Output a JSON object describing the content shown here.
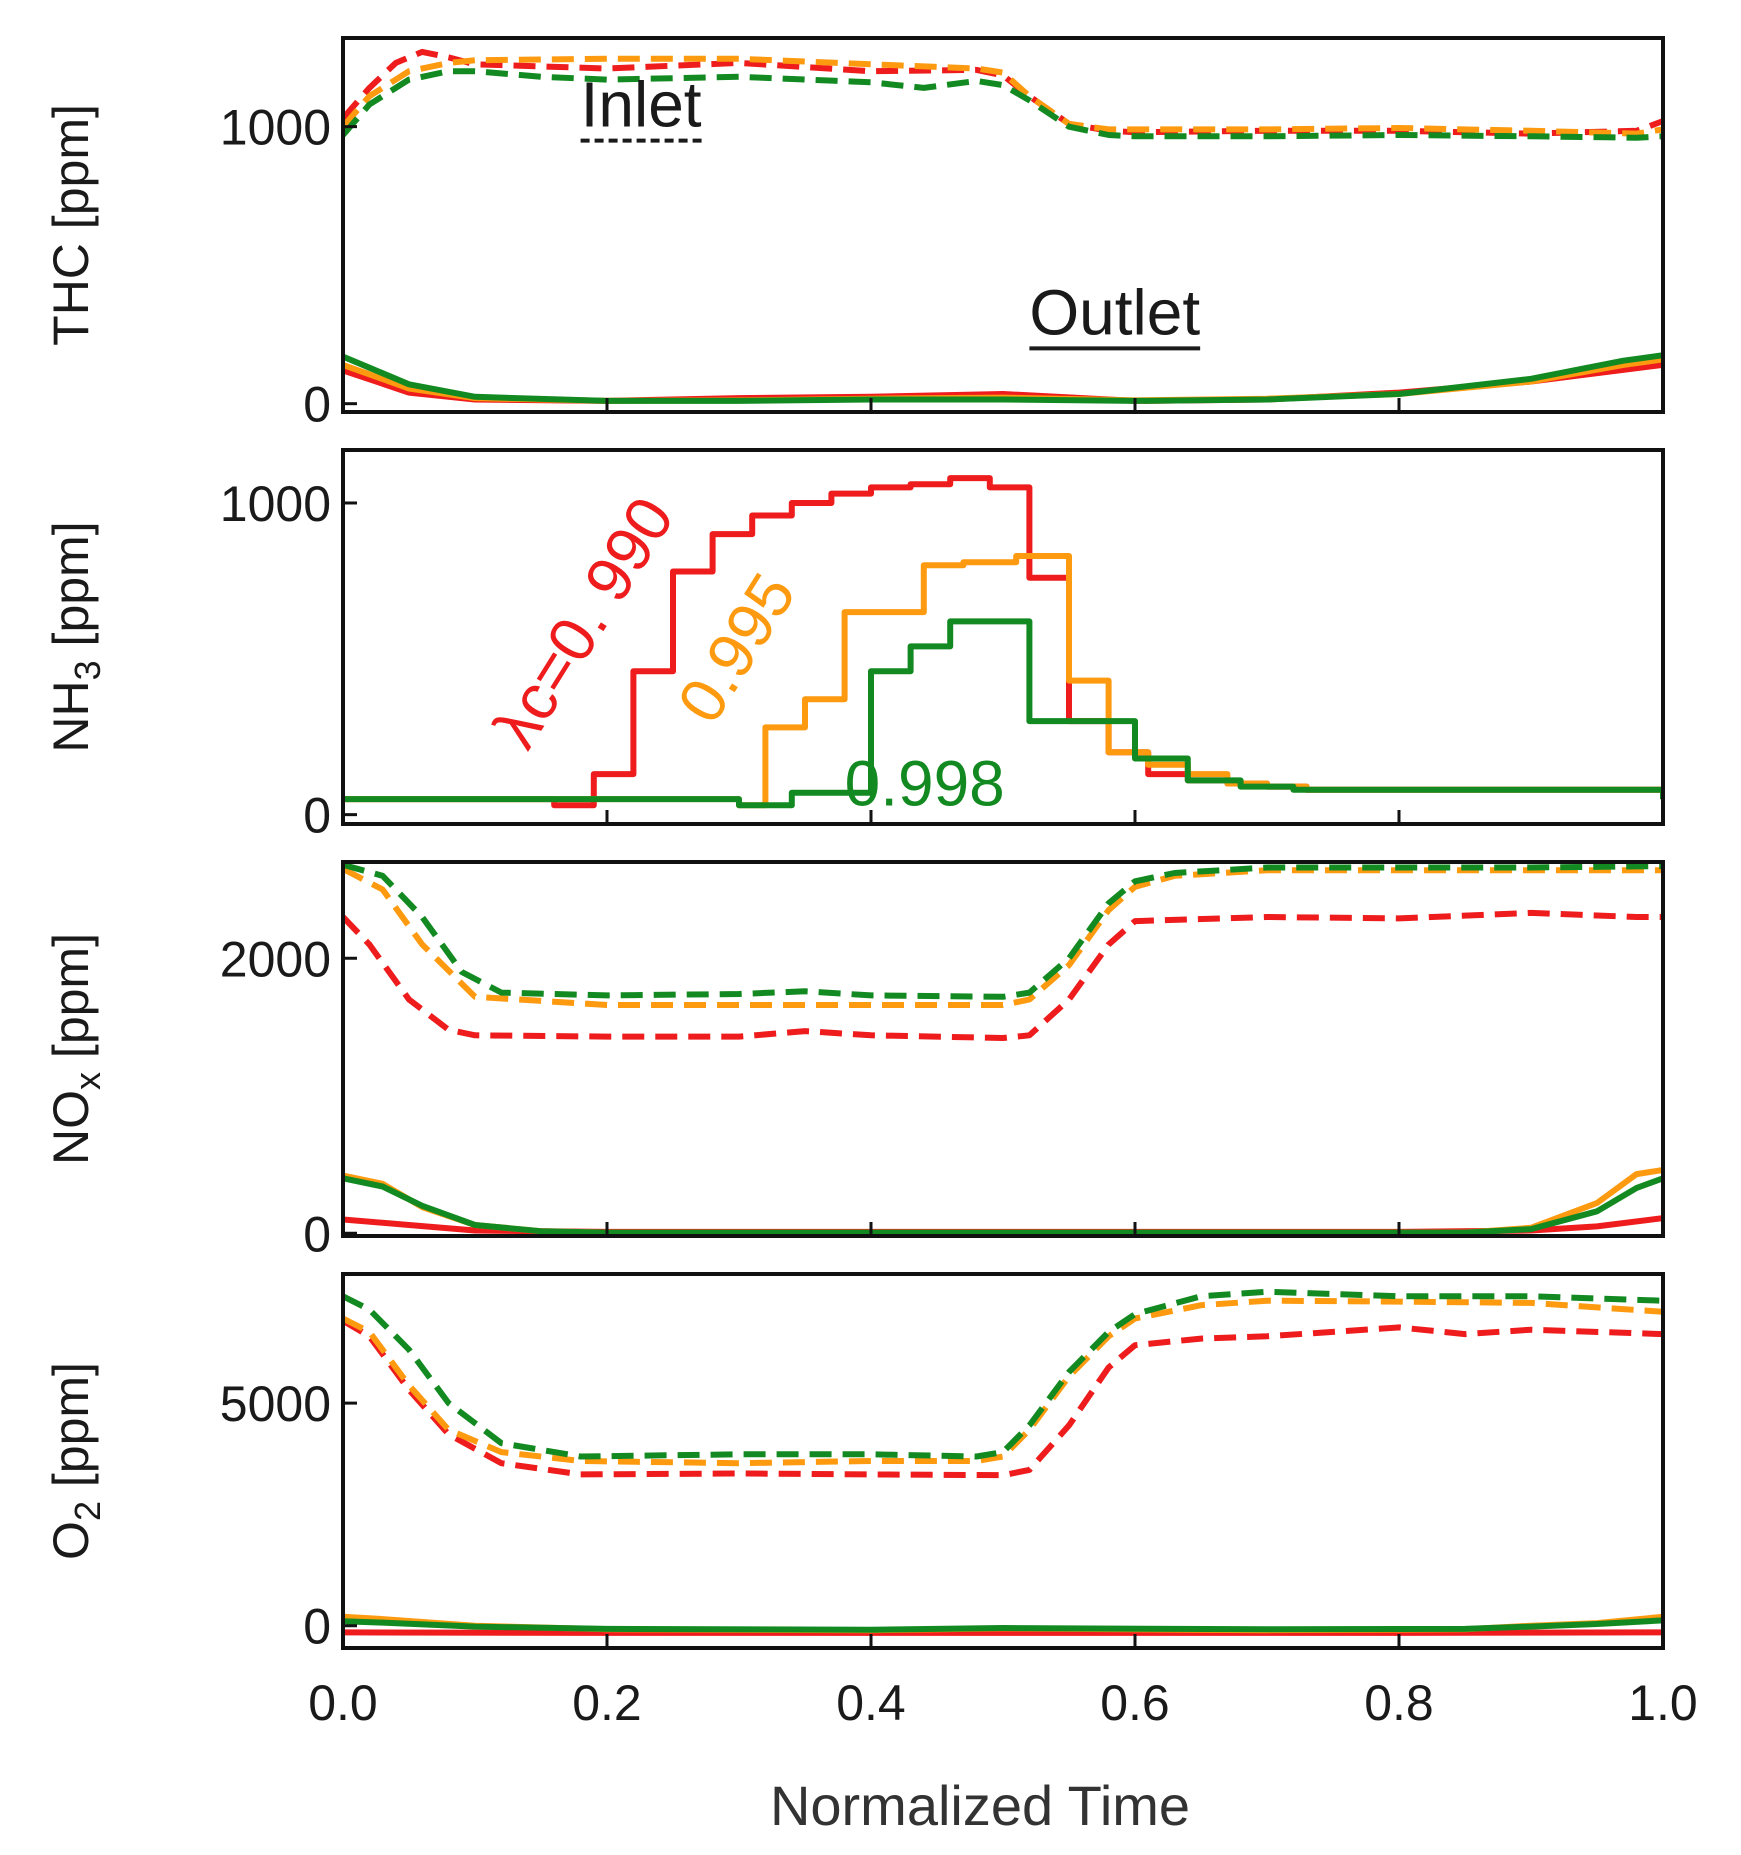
{
  "colors": {
    "red": "#ee1c1c",
    "orange": "#fd9a0f",
    "green": "#138a21",
    "axis": "#111111",
    "text": "#1a1a1a"
  },
  "chart_data": {
    "type": "line",
    "xlabel": "Normalized Time",
    "x_ticks": [
      0.0,
      0.2,
      0.4,
      0.6,
      0.8,
      1.0
    ],
    "x_tick_labels": [
      "0.0",
      "0.2",
      "0.4",
      "0.6",
      "0.8",
      "1.0"
    ],
    "xlim": [
      0,
      1
    ],
    "panels": [
      {
        "id": "thc",
        "ylabel": "THC [ppm]",
        "ylabel_sub": "",
        "ylabel_unit": "",
        "ylim": [
          -30,
          1320
        ],
        "y_ticks": [
          0,
          1000
        ],
        "y_tick_labels": [
          "0",
          "1000"
        ],
        "annotations": [
          {
            "text": "Inlet",
            "color": "text",
            "underline": "dashed",
            "x": 0.18,
            "y": 1000
          },
          {
            "text": "Outlet",
            "color": "text",
            "underline": "solid",
            "x": 0.52,
            "y": 250
          }
        ],
        "series": [
          {
            "name": "Inlet λc=0.990",
            "color": "red",
            "style": "dashed",
            "x": [
              0,
              0.02,
              0.04,
              0.06,
              0.08,
              0.1,
              0.2,
              0.3,
              0.4,
              0.48,
              0.5,
              0.52,
              0.55,
              0.58,
              0.6,
              0.7,
              0.8,
              0.9,
              0.98,
              1.0
            ],
            "y": [
              1030,
              1140,
              1230,
              1270,
              1250,
              1225,
              1210,
              1230,
              1200,
              1205,
              1185,
              1110,
              1010,
              985,
              980,
              985,
              985,
              975,
              985,
              1020
            ]
          },
          {
            "name": "Inlet λc=0.995",
            "color": "orange",
            "style": "dashed",
            "x": [
              0,
              0.02,
              0.05,
              0.08,
              0.1,
              0.2,
              0.3,
              0.4,
              0.48,
              0.5,
              0.52,
              0.55,
              0.58,
              0.6,
              0.7,
              0.8,
              0.9,
              0.98,
              1.0
            ],
            "y": [
              1000,
              1110,
              1200,
              1230,
              1240,
              1245,
              1245,
              1225,
              1210,
              1195,
              1110,
              1010,
              990,
              990,
              990,
              995,
              985,
              975,
              990
            ]
          },
          {
            "name": "Inlet λc=0.998",
            "color": "green",
            "style": "dashed",
            "x": [
              0,
              0.02,
              0.05,
              0.08,
              0.1,
              0.15,
              0.2,
              0.3,
              0.4,
              0.44,
              0.48,
              0.5,
              0.52,
              0.55,
              0.58,
              0.6,
              0.7,
              0.8,
              0.9,
              0.98,
              1.0
            ],
            "y": [
              970,
              1080,
              1170,
              1200,
              1200,
              1180,
              1170,
              1180,
              1160,
              1140,
              1165,
              1150,
              1095,
              1000,
              970,
              965,
              965,
              970,
              965,
              960,
              965
            ]
          },
          {
            "name": "Outlet λc=0.990",
            "color": "red",
            "style": "solid",
            "x": [
              0,
              0.05,
              0.1,
              0.2,
              0.3,
              0.4,
              0.5,
              0.6,
              0.7,
              0.8,
              0.9,
              1.0
            ],
            "y": [
              120,
              40,
              15,
              10,
              20,
              25,
              35,
              10,
              15,
              40,
              80,
              140
            ]
          },
          {
            "name": "Outlet λc=0.995",
            "color": "orange",
            "style": "solid",
            "x": [
              0,
              0.05,
              0.1,
              0.2,
              0.3,
              0.4,
              0.5,
              0.6,
              0.7,
              0.8,
              0.9,
              0.97,
              1.0
            ],
            "y": [
              140,
              55,
              20,
              10,
              12,
              18,
              22,
              12,
              18,
              35,
              80,
              140,
              160
            ]
          },
          {
            "name": "Outlet λc=0.998",
            "color": "green",
            "style": "solid",
            "x": [
              0,
              0.02,
              0.05,
              0.1,
              0.2,
              0.3,
              0.4,
              0.5,
              0.6,
              0.7,
              0.8,
              0.9,
              0.97,
              1.0
            ],
            "y": [
              170,
              130,
              70,
              25,
              10,
              10,
              15,
              15,
              10,
              15,
              35,
              90,
              155,
              175
            ]
          }
        ]
      },
      {
        "id": "nh3",
        "ylabel": "NH",
        "ylabel_sub": "3",
        "ylabel_unit": " [ppm]",
        "ylim": [
          -30,
          1170
        ],
        "y_ticks": [
          0,
          1000
        ],
        "y_tick_labels": [
          "0",
          "1000"
        ],
        "annotations": [
          {
            "text": "λc=0. 990",
            "color": "red",
            "rotate": -58,
            "x": 0.14,
            "y": 200
          },
          {
            "text": "0.995",
            "color": "orange",
            "rotate": -58,
            "x": 0.28,
            "y": 280
          },
          {
            "text": "0.998",
            "color": "green",
            "rotate": 0,
            "x": 0.38,
            "y": 30
          }
        ],
        "series": [
          {
            "name": "λc=0.990",
            "color": "red",
            "style": "solid",
            "step": true,
            "x": [
              0,
              0.16,
              0.19,
              0.22,
              0.25,
              0.28,
              0.31,
              0.34,
              0.37,
              0.4,
              0.43,
              0.46,
              0.49,
              0.52,
              0.55,
              0.58,
              0.61,
              0.64,
              0.67,
              0.7,
              0.73,
              1.0
            ],
            "y": [
              50,
              30,
              130,
              460,
              780,
              900,
              960,
              1000,
              1030,
              1050,
              1060,
              1080,
              1050,
              760,
              300,
              200,
              130,
              110,
              100,
              90,
              80,
              50
            ]
          },
          {
            "name": "λc=0.995",
            "color": "orange",
            "style": "solid",
            "step": true,
            "x": [
              0,
              0.3,
              0.32,
              0.35,
              0.38,
              0.41,
              0.44,
              0.47,
              0.51,
              0.55,
              0.58,
              0.61,
              0.64,
              0.67,
              0.7,
              0.73,
              1.0
            ],
            "y": [
              50,
              30,
              280,
              370,
              650,
              650,
              800,
              810,
              830,
              430,
              200,
              160,
              130,
              100,
              90,
              80,
              50
            ]
          },
          {
            "name": "λc=0.998",
            "color": "green",
            "style": "solid",
            "step": true,
            "x": [
              0,
              0.3,
              0.31,
              0.34,
              0.37,
              0.4,
              0.43,
              0.46,
              0.49,
              0.52,
              0.56,
              0.6,
              0.64,
              0.68,
              0.72,
              1.0
            ],
            "y": [
              50,
              30,
              30,
              70,
              70,
              460,
              540,
              620,
              620,
              300,
              300,
              180,
              110,
              90,
              80,
              50
            ]
          }
        ]
      },
      {
        "id": "nox",
        "ylabel": "NO",
        "ylabel_sub": "x",
        "ylabel_unit": " [ppm]",
        "ylim": [
          -20,
          2700
        ],
        "y_ticks": [
          0,
          2000
        ],
        "y_tick_labels": [
          "0",
          "2000"
        ],
        "annotations": [],
        "series": [
          {
            "name": "Inlet λc=0.990",
            "color": "red",
            "style": "dashed",
            "x": [
              0,
              0.02,
              0.05,
              0.08,
              0.1,
              0.2,
              0.3,
              0.35,
              0.4,
              0.5,
              0.52,
              0.55,
              0.58,
              0.6,
              0.7,
              0.8,
              0.9,
              0.98,
              1.0
            ],
            "y": [
              2300,
              2100,
              1700,
              1480,
              1440,
              1430,
              1430,
              1470,
              1440,
              1420,
              1440,
              1700,
              2100,
              2270,
              2300,
              2290,
              2330,
              2300,
              2300
            ]
          },
          {
            "name": "Inlet λc=0.995",
            "color": "orange",
            "style": "dashed",
            "x": [
              0,
              0.03,
              0.06,
              0.1,
              0.2,
              0.3,
              0.4,
              0.5,
              0.52,
              0.55,
              0.58,
              0.6,
              0.63,
              0.7,
              0.8,
              0.9,
              1.0
            ],
            "y": [
              2650,
              2500,
              2100,
              1720,
              1660,
              1660,
              1660,
              1660,
              1700,
              1950,
              2350,
              2520,
              2600,
              2640,
              2640,
              2640,
              2640
            ]
          },
          {
            "name": "Inlet λc=0.998",
            "color": "green",
            "style": "dashed",
            "x": [
              0,
              0.03,
              0.06,
              0.09,
              0.12,
              0.2,
              0.3,
              0.35,
              0.4,
              0.5,
              0.52,
              0.55,
              0.58,
              0.6,
              0.63,
              0.7,
              0.8,
              0.9,
              1.0
            ],
            "y": [
              2680,
              2600,
              2300,
              1900,
              1750,
              1730,
              1740,
              1760,
              1730,
              1720,
              1750,
              2000,
              2400,
              2560,
              2620,
              2660,
              2660,
              2660,
              2670
            ]
          },
          {
            "name": "Outlet λc=0.990",
            "color": "red",
            "style": "solid",
            "x": [
              0,
              0.05,
              0.1,
              0.2,
              0.5,
              0.8,
              0.9,
              0.95,
              1.0
            ],
            "y": [
              100,
              60,
              20,
              10,
              10,
              10,
              20,
              50,
              110
            ]
          },
          {
            "name": "Outlet λc=0.995",
            "color": "orange",
            "style": "solid",
            "x": [
              0,
              0.03,
              0.06,
              0.1,
              0.15,
              0.2,
              0.5,
              0.85,
              0.9,
              0.95,
              0.98,
              1.0
            ],
            "y": [
              420,
              360,
              190,
              60,
              15,
              5,
              5,
              5,
              40,
              220,
              430,
              460
            ]
          },
          {
            "name": "Outlet λc=0.998",
            "color": "green",
            "style": "solid",
            "x": [
              0,
              0.03,
              0.06,
              0.1,
              0.15,
              0.2,
              0.5,
              0.85,
              0.9,
              0.95,
              0.98,
              1.0
            ],
            "y": [
              400,
              340,
              200,
              60,
              15,
              5,
              5,
              5,
              30,
              160,
              330,
              400
            ]
          }
        ]
      },
      {
        "id": "o2",
        "ylabel": "O",
        "ylabel_sub": "2",
        "ylabel_unit": " [ppm]",
        "ylim": [
          -500,
          7900
        ],
        "y_ticks": [
          0,
          5000
        ],
        "y_tick_labels": [
          "0",
          "5000"
        ],
        "annotations": [],
        "series": [
          {
            "name": "Inlet λc=0.990",
            "color": "red",
            "style": "dashed",
            "x": [
              0,
              0.02,
              0.05,
              0.08,
              0.12,
              0.18,
              0.3,
              0.4,
              0.5,
              0.52,
              0.55,
              0.58,
              0.6,
              0.65,
              0.7,
              0.8,
              0.85,
              0.9,
              1.0
            ],
            "y": [
              6850,
              6500,
              5300,
              4300,
              3650,
              3400,
              3420,
              3400,
              3380,
              3500,
              4500,
              5800,
              6300,
              6450,
              6500,
              6700,
              6550,
              6650,
              6550
            ]
          },
          {
            "name": "Inlet λc=0.995",
            "color": "orange",
            "style": "dashed",
            "x": [
              0,
              0.02,
              0.05,
              0.08,
              0.12,
              0.18,
              0.3,
              0.4,
              0.48,
              0.5,
              0.52,
              0.55,
              0.58,
              0.6,
              0.65,
              0.7,
              0.8,
              0.9,
              1.0
            ],
            "y": [
              6900,
              6600,
              5400,
              4400,
              3900,
              3700,
              3650,
              3700,
              3700,
              3800,
              4400,
              5600,
              6500,
              6900,
              7200,
              7300,
              7280,
              7250,
              7050
            ]
          },
          {
            "name": "Inlet λc=0.998",
            "color": "green",
            "style": "dashed",
            "x": [
              0,
              0.02,
              0.05,
              0.08,
              0.12,
              0.18,
              0.3,
              0.4,
              0.48,
              0.5,
              0.52,
              0.55,
              0.58,
              0.6,
              0.65,
              0.7,
              0.8,
              0.9,
              1.0
            ],
            "y": [
              7400,
              7100,
              6200,
              5000,
              4100,
              3800,
              3850,
              3850,
              3800,
              3900,
              4500,
              5700,
              6600,
              7000,
              7400,
              7500,
              7400,
              7400,
              7300
            ]
          },
          {
            "name": "Outlet λc=0.990",
            "color": "red",
            "style": "solid",
            "x": [
              0,
              0.2,
              0.5,
              0.8,
              1.0
            ],
            "y": [
              -150,
              -160,
              -160,
              -160,
              -150
            ]
          },
          {
            "name": "Outlet λc=0.995",
            "color": "orange",
            "style": "solid",
            "x": [
              0,
              0.03,
              0.1,
              0.2,
              0.4,
              0.5,
              0.7,
              0.85,
              0.9,
              0.95,
              1.0
            ],
            "y": [
              200,
              150,
              0,
              -80,
              -100,
              -60,
              -100,
              -80,
              0,
              60,
              200
            ]
          },
          {
            "name": "Outlet λc=0.998",
            "color": "green",
            "style": "solid",
            "x": [
              0,
              0.03,
              0.1,
              0.2,
              0.4,
              0.5,
              0.7,
              0.85,
              0.9,
              0.95,
              1.0
            ],
            "y": [
              100,
              70,
              -20,
              -70,
              -90,
              -50,
              -80,
              -70,
              -20,
              40,
              120
            ]
          }
        ]
      }
    ]
  }
}
